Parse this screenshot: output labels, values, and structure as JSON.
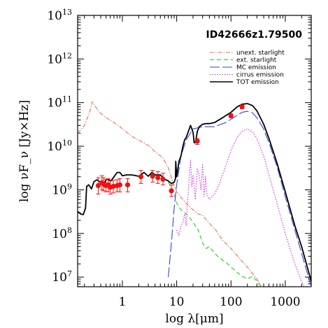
{
  "chart_data": {
    "type": "line",
    "xlabel": "log λ[μm]",
    "ylabel": "log νF_ν [Jy×Hz]",
    "annotation": "ID42666z1.79500",
    "xscale": "log",
    "yscale": "log",
    "xlim": [
      0.15,
      3000
    ],
    "ylim": [
      6000000.0,
      10000000000000.0
    ],
    "x_ticks": [
      {
        "value": 1,
        "label": "1"
      },
      {
        "value": 10,
        "label": "10"
      },
      {
        "value": 100,
        "label": "100"
      },
      {
        "value": 1000,
        "label": "1000"
      }
    ],
    "y_ticks": [
      {
        "value": 10000000.0,
        "base": "10",
        "exp": "7"
      },
      {
        "value": 100000000.0,
        "base": "10",
        "exp": "8"
      },
      {
        "value": 1000000000.0,
        "base": "10",
        "exp": "9"
      },
      {
        "value": 10000000000.0,
        "base": "10",
        "exp": "10"
      },
      {
        "value": 100000000000.0,
        "base": "10",
        "exp": "11"
      },
      {
        "value": 1000000000000.0,
        "base": "10",
        "exp": "12"
      },
      {
        "value": 10000000000000.0,
        "base": "10",
        "exp": "13"
      }
    ],
    "legend_position": "top-right",
    "grid": false,
    "series": [
      {
        "name": "unext. starlight",
        "color": "#e07050",
        "dash": "6,2,1.5,2",
        "x": [
          0.15,
          0.2,
          0.25,
          0.28,
          0.32,
          0.38,
          0.45,
          0.55,
          0.7,
          0.9,
          1.2,
          1.6,
          2.2,
          3,
          4,
          5.5,
          7,
          8.5,
          10,
          13,
          16,
          20,
          25,
          30,
          40,
          50,
          70,
          100,
          150,
          200,
          300,
          400
        ],
        "y": [
          20000000000.0,
          30000000000.0,
          60000000000.0,
          105000000000.0,
          80000000000.0,
          60000000000.0,
          50000000000.0,
          42000000000.0,
          35000000000.0,
          28000000000.0,
          21000000000.0,
          16000000000.0,
          13000000000.0,
          10500000000.0,
          7500000000.0,
          5500000000.0,
          3200000000.0,
          1500000000.0,
          900000000.0,
          600000000.0,
          450000000.0,
          350000000.0,
          280000000.0,
          260000000.0,
          170000000.0,
          130000000.0,
          70000000.0,
          45000000.0,
          25000000.0,
          17000000.0,
          9000000.0,
          5000000.0
        ]
      },
      {
        "name": "ext. starlight",
        "color": "#22cc22",
        "dash": "6,4",
        "x": [
          7,
          8,
          9,
          10,
          12,
          15,
          18,
          20,
          25,
          30,
          35,
          40,
          50,
          60,
          80,
          100,
          150,
          200,
          250,
          300,
          400,
          500
        ],
        "y": [
          1500000000.0,
          1100000000.0,
          800000000.0,
          500000000.0,
          350000000.0,
          280000000.0,
          220000000.0,
          180000000.0,
          120000000.0,
          60000000.0,
          45000000.0,
          50000000.0,
          35000000.0,
          28000000.0,
          22000000.0,
          17000000.0,
          11000000.0,
          9000000.0,
          10500000.0,
          8000000.0,
          5000000.0,
          3000000.0
        ]
      },
      {
        "name": "MC emission",
        "color": "#3344dd",
        "dash": "14,4",
        "x": [
          7,
          8,
          9,
          10,
          12,
          15,
          20,
          30,
          50,
          80,
          120,
          160,
          200,
          250,
          300,
          400,
          500,
          700,
          1000,
          1500,
          2000,
          3000
        ],
        "y": [
          10000000.0,
          60000000.0,
          400000000.0,
          1300000000.0,
          6000000000.0,
          14000000000.0,
          25000000000.0,
          28000000000.0,
          28000000000.0,
          35000000000.0,
          48000000000.0,
          60000000000.0,
          63000000000.0,
          58000000000.0,
          45000000000.0,
          25000000000.0,
          12000000000.0,
          3500000000.0,
          700000000.0,
          120000000.0,
          35000000.0,
          6000000.0
        ]
      },
      {
        "name": "cirrus emission",
        "color": "#dd22dd",
        "dash": "1.5,2",
        "x": [
          10,
          11,
          12,
          13,
          14,
          15,
          16,
          17,
          18,
          19,
          20,
          21,
          22,
          24,
          26,
          28,
          30,
          32,
          34,
          36,
          40,
          50,
          60,
          80,
          100,
          130,
          160,
          200,
          250,
          300,
          400,
          500,
          700,
          1000,
          1500,
          2000,
          3000
        ],
        "y": [
          120000000.0,
          90000000.0,
          150000000.0,
          180000000.0,
          280000000.0,
          150000000.0,
          600000000.0,
          1800000000.0,
          4800000000.0,
          1200000000.0,
          2200000000.0,
          1200000000.0,
          600000000.0,
          3000000000.0,
          2200000000.0,
          1000000000.0,
          4000000000.0,
          700000000.0,
          2000000000.0,
          800000000.0,
          600000000.0,
          800000000.0,
          1300000000.0,
          3500000000.0,
          8000000000.0,
          16000000000.0,
          22000000000.0,
          25000000000.0,
          21000000000.0,
          15000000000.0,
          6000000000.0,
          2200000000.0,
          500000000.0,
          100000000.0,
          20000000.0,
          8000000.0,
          3000000.0
        ]
      },
      {
        "name": "TOT emission",
        "color": "#000000",
        "dash": "",
        "x": [
          0.15,
          0.17,
          0.19,
          0.21,
          0.22,
          0.24,
          0.27,
          0.3,
          0.34,
          0.38,
          0.42,
          0.46,
          0.5,
          0.55,
          0.6,
          0.65,
          0.7,
          0.8,
          0.9,
          1.0,
          1.2,
          1.5,
          2,
          2.5,
          3,
          3.5,
          4,
          5,
          6,
          7,
          8,
          9,
          9.5,
          9.6,
          10,
          11,
          12,
          13,
          14,
          15,
          16,
          18,
          20,
          21,
          22,
          23,
          24,
          26,
          28,
          30,
          35,
          40,
          50,
          70,
          100,
          130,
          160,
          200,
          250,
          300,
          400,
          500,
          700,
          1000,
          1500,
          2000,
          3000
        ],
        "y": [
          320000000.0,
          280000000.0,
          270000000.0,
          380000000.0,
          1200000000.0,
          1300000000.0,
          1050000000.0,
          1550000000.0,
          1700000000.0,
          1550000000.0,
          1450000000.0,
          1400000000.0,
          1700000000.0,
          1750000000.0,
          1600000000.0,
          1750000000.0,
          2000000000.0,
          2500000000.0,
          2500000000.0,
          2100000000.0,
          2200000000.0,
          2200000000.0,
          2050000000.0,
          2500000000.0,
          2050000000.0,
          2500000000.0,
          2200000000.0,
          2200000000.0,
          1750000000.0,
          1600000000.0,
          1400000000.0,
          1500000000.0,
          1800000000.0,
          4500000000.0,
          2000000000.0,
          4500000000.0,
          6000000000.0,
          10000000000.0,
          14000000000.0,
          16000000000.0,
          20000000000.0,
          30000000000.0,
          21000000000.0,
          12000000000.0,
          12000000000.0,
          16000000000.0,
          22000000000.0,
          28000000000.0,
          30000000000.0,
          32000000000.0,
          33000000000.0,
          33000000000.0,
          35000000000.0,
          45000000000.0,
          60000000000.0,
          80000000000.0,
          92000000000.0,
          95000000000.0,
          85000000000.0,
          65000000000.0,
          32000000000.0,
          15000000000.0,
          4200000000.0,
          900000000.0,
          150000000.0,
          50000000.0,
          8000000.0
        ]
      }
    ],
    "observed_points": {
      "color": "#ee1111",
      "points": [
        {
          "x": 0.36,
          "y": 1250000000.0,
          "yerr": [
            800000000.0,
            1900000000.0
          ]
        },
        {
          "x": 0.42,
          "y": 1450000000.0,
          "yerr": [
            1000000000.0,
            2100000000.0
          ]
        },
        {
          "x": 0.45,
          "y": 1350000000.0,
          "yerr": [
            950000000.0,
            1900000000.0
          ]
        },
        {
          "x": 0.5,
          "y": 1250000000.0,
          "yerr": [
            900000000.0,
            1750000000.0
          ]
        },
        {
          "x": 0.55,
          "y": 1300000000.0,
          "yerr": [
            900000000.0,
            1800000000.0
          ]
        },
        {
          "x": 0.6,
          "y": 1150000000.0,
          "yerr": [
            800000000.0,
            1600000000.0
          ]
        },
        {
          "x": 0.68,
          "y": 1200000000.0,
          "yerr": [
            850000000.0,
            1650000000.0
          ]
        },
        {
          "x": 0.8,
          "y": 1250000000.0,
          "yerr": [
            900000000.0,
            1700000000.0
          ]
        },
        {
          "x": 0.9,
          "y": 1300000000.0,
          "yerr": [
            900000000.0,
            1800000000.0
          ]
        },
        {
          "x": 1.25,
          "y": 1300000000.0,
          "yerr": [
            900000000.0,
            1800000000.0
          ]
        },
        {
          "x": 2.2,
          "y": 2000000000.0,
          "yerr": [
            1400000000.0,
            2800000000.0
          ]
        },
        {
          "x": 3.6,
          "y": 2050000000.0,
          "yerr": [
            1500000000.0,
            2800000000.0
          ]
        },
        {
          "x": 4.5,
          "y": 1900000000.0,
          "yerr": [
            1400000000.0,
            2600000000.0
          ]
        },
        {
          "x": 5.6,
          "y": 1750000000.0,
          "yerr": [
            1300000000.0,
            2400000000.0
          ]
        },
        {
          "x": 8,
          "y": 950000000.0,
          "yerr": [
            700000000.0,
            1300000000.0
          ]
        },
        {
          "x": 24,
          "y": 13000000000.0,
          "yerr": [
            11000000000.0,
            15000000000.0
          ]
        },
        {
          "x": 100,
          "y": 50000000000.0,
          "yerr": [
            45000000000.0,
            55000000000.0
          ]
        },
        {
          "x": 160,
          "y": 80000000000.0,
          "yerr": [
            72000000000.0,
            88000000000.0
          ]
        }
      ]
    }
  }
}
